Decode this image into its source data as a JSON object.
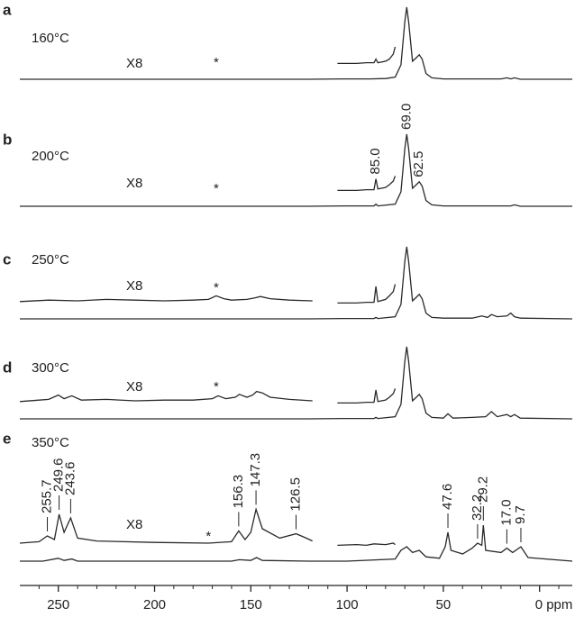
{
  "chart_data": {
    "type": "line",
    "color": "#2a2a2a",
    "xlim": [
      270,
      -17
    ],
    "ylim": [
      0,
      100
    ],
    "xticks": [
      250,
      200,
      150,
      100,
      50,
      {
        "value": 0,
        "label": "0 ppm"
      }
    ],
    "minor_xticks": [
      260,
      240,
      230,
      220,
      210,
      190,
      180,
      170,
      160,
      140,
      130,
      120,
      110,
      90,
      80,
      70,
      60,
      40,
      30,
      20,
      10,
      -10
    ],
    "panels": [
      {
        "label": "a",
        "temperature": "160°C",
        "scale_label": "X8",
        "annotation": {
          "text": "*",
          "x": 168
        },
        "leader_lines": false,
        "peak_labels": [],
        "traces": [
          {
            "x": [
              270,
              200,
              120,
              100,
              88,
              80,
              75,
              72,
              70,
              69,
              68,
              66,
              64,
              62.5,
              61,
              59,
              56,
              50,
              20,
              17,
              15,
              13,
              10,
              -17
            ],
            "values": [
              0,
              0,
              0,
              0.5,
              0.5,
              1,
              3,
              20,
              80,
              100,
              80,
              25,
              30,
              34,
              28,
              8,
              2,
              0.5,
              0.5,
              2,
              0.5,
              2,
              0,
              0
            ]
          },
          {
            "x": [
              105,
              95,
              90,
              86,
              85,
              84,
              80,
              78,
              76,
              75
            ],
            "values": [
              22,
              22,
              23,
              23,
              28,
              23,
              25,
              28,
              35,
              45
            ]
          }
        ]
      },
      {
        "label": "b",
        "temperature": "200°C",
        "scale_label": "X8",
        "annotation": {
          "text": "*",
          "x": 168
        },
        "leader_lines": false,
        "peak_labels": [
          {
            "value": 85,
            "label": "85.0"
          },
          {
            "value": 69,
            "label": "69.0"
          },
          62.5
        ],
        "traces": [
          {
            "x": [
              270,
              200,
              120,
              100,
              86,
              85,
              84,
              75,
              72,
              70,
              69,
              68,
              66,
              64,
              62.5,
              61,
              59,
              56,
              50,
              20,
              15,
              13,
              10,
              -17
            ],
            "values": [
              0,
              0,
              0,
              0.5,
              0.5,
              3,
              0.5,
              3,
              20,
              80,
              100,
              80,
              25,
              30,
              34,
              28,
              8,
              2,
              0.5,
              0.5,
              0.5,
              2,
              0,
              0
            ]
          },
          {
            "x": [
              105,
              95,
              90,
              86,
              85,
              84,
              80,
              78,
              76,
              75
            ],
            "values": [
              22,
              22,
              23,
              23,
              38,
              24,
              26,
              30,
              35,
              42
            ]
          }
        ]
      },
      {
        "label": "c",
        "temperature": "250°C",
        "scale_label": "X8",
        "annotation": {
          "text": "*",
          "x": 168
        },
        "leader_lines": false,
        "peak_labels": [],
        "traces": [
          {
            "x": [
              270,
              200,
              120,
              100,
              86,
              85,
              84,
              75,
              72,
              70,
              69,
              68,
              66,
              64,
              62.5,
              61,
              59,
              56,
              50,
              35,
              30,
              27,
              25,
              22,
              17,
              15,
              13,
              10,
              -17
            ],
            "values": [
              0,
              0,
              0,
              0.5,
              0.5,
              2,
              0.5,
              3,
              20,
              80,
              100,
              80,
              25,
              30,
              34,
              28,
              8,
              2,
              1,
              1,
              4,
              2,
              6,
              3,
              4,
              8,
              3,
              1,
              0
            ]
          },
          {
            "x": [
              270,
              255,
              240,
              225,
              210,
              195,
              180,
              172,
              168,
              164,
              160,
              152,
              148,
              145,
              140,
              130,
              118
            ],
            "values": [
              24,
              26,
              25,
              27,
              26,
              25,
              26,
              27,
              32,
              28,
              26,
              27,
              29,
              31,
              28,
              26,
              25
            ]
          },
          {
            "x": [
              105,
              95,
              90,
              86,
              85,
              84,
              80,
              78,
              76,
              75
            ],
            "values": [
              22,
              22,
              23,
              23,
              45,
              24,
              27,
              32,
              38,
              48
            ]
          }
        ]
      },
      {
        "label": "d",
        "temperature": "300°C",
        "scale_label": "X8",
        "annotation": {
          "text": "*",
          "x": 168
        },
        "leader_lines": false,
        "peak_labels": [],
        "traces": [
          {
            "x": [
              270,
              200,
              120,
              100,
              86,
              85,
              84,
              75,
              72,
              70,
              69,
              68,
              66,
              64,
              62.5,
              61,
              59,
              56,
              50,
              47.6,
              45,
              35,
              28,
              25,
              22,
              17,
              15,
              13,
              10,
              -17
            ],
            "values": [
              0,
              0,
              0,
              0.5,
              0.5,
              2,
              0.5,
              3,
              20,
              80,
              100,
              80,
              25,
              30,
              34,
              28,
              8,
              2,
              1,
              7,
              1,
              2,
              3,
              10,
              3,
              6,
              3,
              6,
              1,
              0
            ]
          },
          {
            "x": [
              270,
              260,
              255,
              250,
              247,
              243,
              238,
              225,
              210,
              195,
              180,
              170,
              167,
              163,
              158,
              156,
              152,
              149,
              147,
              144,
              140,
              130,
              118
            ],
            "values": [
              24,
              26,
              27,
              33,
              28,
              32,
              26,
              27,
              25,
              26,
              26,
              28,
              32,
              28,
              30,
              34,
              30,
              33,
              38,
              36,
              30,
              27,
              25
            ]
          },
          {
            "x": [
              105,
              95,
              90,
              86,
              85,
              84,
              80,
              78,
              76,
              75
            ],
            "values": [
              22,
              22,
              23,
              23,
              40,
              24,
              26,
              30,
              35,
              42
            ]
          }
        ]
      },
      {
        "label": "e",
        "temperature": "350°C",
        "scale_label": "X8",
        "annotation": {
          "text": "*",
          "x": 172
        },
        "leader_lines": true,
        "peak_labels": [
          255.7,
          249.6,
          243.6,
          156.3,
          147.3,
          126.5,
          47.6,
          32.2,
          29.2,
          {
            "value": 17,
            "label": "17.0"
          },
          9.7
        ],
        "traces": [
          {
            "x": [
              270,
              258,
              250,
              247,
              243,
              240,
              200,
              160,
              156,
              150,
              147,
              144,
              120,
              100,
              75,
              72,
              69,
              66,
              62.5,
              59,
              52,
              49,
              47.6,
              46,
              40,
              35,
              32.2,
              30,
              29.2,
              28,
              20,
              17,
              14,
              9.7,
              6,
              -17
            ],
            "values": [
              0,
              0,
              4,
              1,
              3,
              0,
              0,
              0,
              2,
              1,
              5,
              1,
              0,
              0,
              3,
              15,
              20,
              12,
              15,
              6,
              4,
              20,
              40,
              15,
              10,
              18,
              25,
              22,
              50,
              15,
              12,
              18,
              12,
              20,
              5,
              0
            ]
          },
          {
            "x": [
              270,
              260,
              255.7,
              252,
              249.6,
              247,
              243.6,
              240,
              230,
              200,
              172,
              160,
              156.3,
              153,
              150,
              147.3,
              144,
              135,
              126.5,
              122,
              118
            ],
            "values": [
              25,
              27,
              35,
              30,
              65,
              40,
              60,
              32,
              28,
              26,
              25,
              27,
              42,
              30,
              40,
              72,
              45,
              32,
              38,
              33,
              28
            ]
          },
          {
            "x": [
              105,
              95,
              90,
              86,
              80,
              76,
              75
            ],
            "values": [
              22,
              23,
              22,
              24,
              23,
              25,
              23
            ]
          }
        ]
      }
    ]
  }
}
